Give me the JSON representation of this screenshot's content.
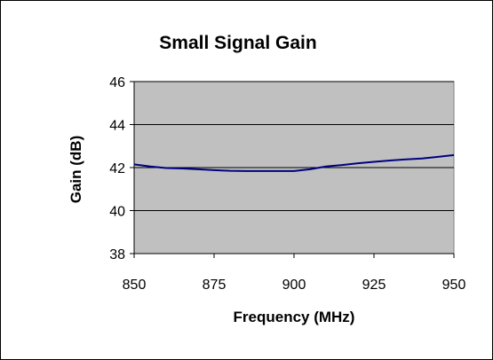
{
  "chart_data": {
    "type": "line",
    "title": "Small Signal Gain",
    "xlabel": "Frequency  (MHz)",
    "ylabel": "Gain (dB)",
    "xlim": [
      850,
      950
    ],
    "ylim": [
      38,
      46
    ],
    "x_ticks": [
      850,
      875,
      900,
      925,
      950
    ],
    "y_ticks": [
      38,
      40,
      42,
      44,
      46
    ],
    "grid": "horizontal",
    "legend": "none",
    "colors": {
      "plot_background": "#c0c0c0",
      "line": "#000080",
      "gridline": "#000000"
    },
    "series": [
      {
        "x": [
          850,
          855,
          860,
          865,
          870,
          875,
          880,
          885,
          890,
          895,
          900,
          905,
          910,
          915,
          920,
          925,
          930,
          935,
          940,
          945,
          950
        ],
        "values": [
          42.15,
          42.05,
          41.98,
          41.96,
          41.92,
          41.88,
          41.85,
          41.84,
          41.84,
          41.84,
          41.84,
          41.92,
          42.05,
          42.12,
          42.2,
          42.27,
          42.33,
          42.38,
          42.42,
          42.5,
          42.58
        ]
      }
    ]
  }
}
